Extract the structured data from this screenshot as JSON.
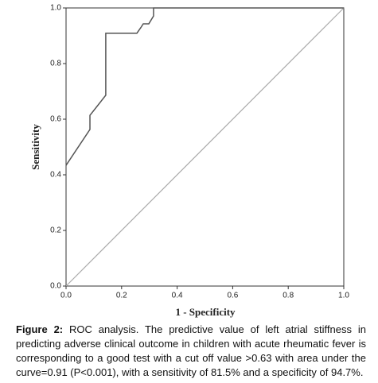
{
  "chart_data": {
    "type": "line",
    "xlabel": "1 - Specificity",
    "ylabel": "Sensitivity",
    "x": [
      0,
      0.086,
      0.086,
      0.143,
      0.143,
      0.255,
      0.269,
      0.278,
      0.298,
      0.315,
      0.315,
      1.0
    ],
    "values": [
      0.434,
      0.563,
      0.614,
      0.686,
      0.909,
      0.909,
      0.929,
      0.943,
      0.943,
      0.971,
      1.0,
      1.0
    ],
    "color": "#555555",
    "xlim": [
      0,
      1
    ],
    "ylim": [
      0,
      1
    ],
    "xticks": [
      {
        "value": 0,
        "label": "0.0"
      },
      {
        "value": 0.2,
        "label": "0.2"
      },
      {
        "value": 0.4,
        "label": "0.4"
      },
      {
        "value": 0.6,
        "label": "0.6"
      },
      {
        "value": 0.8,
        "label": "0.8"
      },
      {
        "value": 1,
        "label": "1.0"
      }
    ],
    "yticks": [
      {
        "value": 0,
        "label": "0.0"
      },
      {
        "value": 0.2,
        "label": "0.2"
      },
      {
        "value": 0.4,
        "label": "0.4"
      },
      {
        "value": 0.6,
        "label": "0.6"
      },
      {
        "value": 0.8,
        "label": "0.8"
      },
      {
        "value": 1,
        "label": "1.0"
      }
    ]
  },
  "caption": {
    "label": "Figure 2:",
    "text": "ROC analysis. The predictive value of left atrial stiffness in predicting adverse clinical outcome in children with acute rheumatic fever is corresponding to a good test with a cut off value >0.63 with area under the curve=0.91 (P<0.001), with a sensitivity of 81.5% and a specificity of 94.7%."
  }
}
